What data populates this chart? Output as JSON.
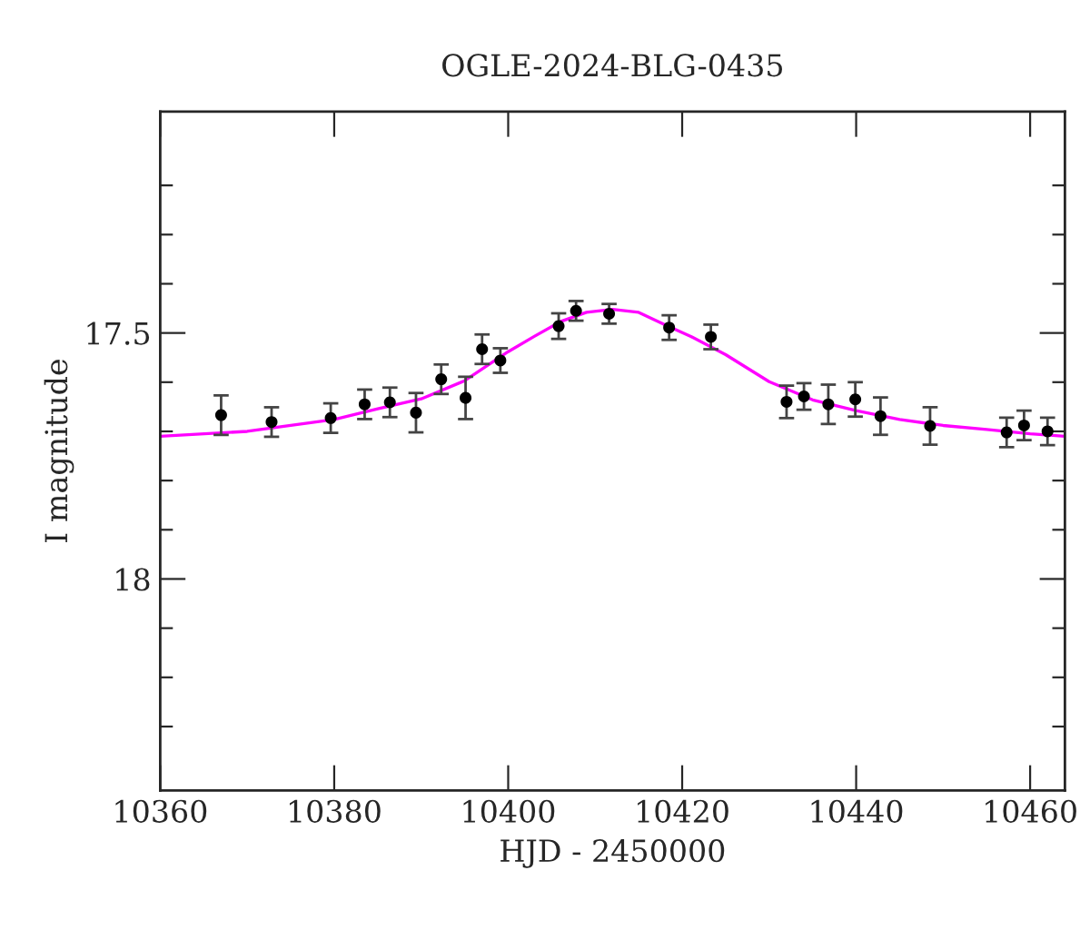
{
  "chart_data": {
    "type": "scatter",
    "title": "OGLE-2024-BLG-0435",
    "xlabel": "HJD - 2450000",
    "ylabel": "I magnitude",
    "xlim": [
      10360,
      10464
    ],
    "xticks": [
      10360,
      10380,
      10400,
      10420,
      10440,
      10460
    ],
    "ylim": [
      18.43,
      17.05
    ],
    "yticks": [
      {
        "value": 17.2,
        "label": null
      },
      {
        "value": 17.3,
        "label": null
      },
      {
        "value": 17.4,
        "label": null
      },
      {
        "value": 17.5,
        "label": "17.5"
      },
      {
        "value": 17.6,
        "label": null
      },
      {
        "value": 17.7,
        "label": null
      },
      {
        "value": 17.8,
        "label": null
      },
      {
        "value": 17.9,
        "label": null
      },
      {
        "value": 18,
        "label": "18"
      },
      {
        "value": 18.1,
        "label": null
      },
      {
        "value": 18.2,
        "label": null
      },
      {
        "value": 18.3,
        "label": null
      }
    ],
    "grid": false,
    "legend": false,
    "series": [
      {
        "type": "line",
        "color": "#ff00ff",
        "marker": "none",
        "line_style": "solid",
        "x": [
          10360,
          10370,
          10380,
          10385,
          10390,
          10395,
          10400,
          10403,
          10406,
          10409,
          10412,
          10415,
          10418,
          10421,
          10425,
          10430,
          10435,
          10440,
          10445,
          10450,
          10455,
          10460,
          10464
        ],
        "values": [
          17.71,
          17.7,
          17.676,
          17.654,
          17.634,
          17.597,
          17.538,
          17.507,
          17.477,
          17.458,
          17.452,
          17.458,
          17.483,
          17.507,
          17.544,
          17.599,
          17.636,
          17.658,
          17.676,
          17.688,
          17.696,
          17.705,
          17.71
        ]
      },
      {
        "color": "#000000",
        "marker": "circle",
        "x": [
          10367,
          10372.8,
          10379.6,
          10383.5,
          10386.4,
          10389.4,
          10392.3,
          10395.1,
          10397.0,
          10399.1,
          10405.8,
          10407.8,
          10411.6,
          10418.5,
          10423.3,
          10432.0,
          10434.0,
          10436.8,
          10439.9,
          10442.8,
          10448.5,
          10457.3,
          10459.3,
          10462.0
        ],
        "values": [
          17.667,
          17.681,
          17.673,
          17.645,
          17.641,
          17.662,
          17.594,
          17.632,
          17.533,
          17.556,
          17.486,
          17.455,
          17.461,
          17.489,
          17.508,
          17.64,
          17.629,
          17.645,
          17.635,
          17.669,
          17.689,
          17.702,
          17.688,
          17.7
        ],
        "errors": [
          0.04,
          0.03,
          0.03,
          0.03,
          0.03,
          0.04,
          0.03,
          0.043,
          0.03,
          0.025,
          0.026,
          0.02,
          0.02,
          0.025,
          0.025,
          0.033,
          0.027,
          0.04,
          0.035,
          0.038,
          0.038,
          0.03,
          0.03,
          0.028
        ]
      }
    ]
  }
}
